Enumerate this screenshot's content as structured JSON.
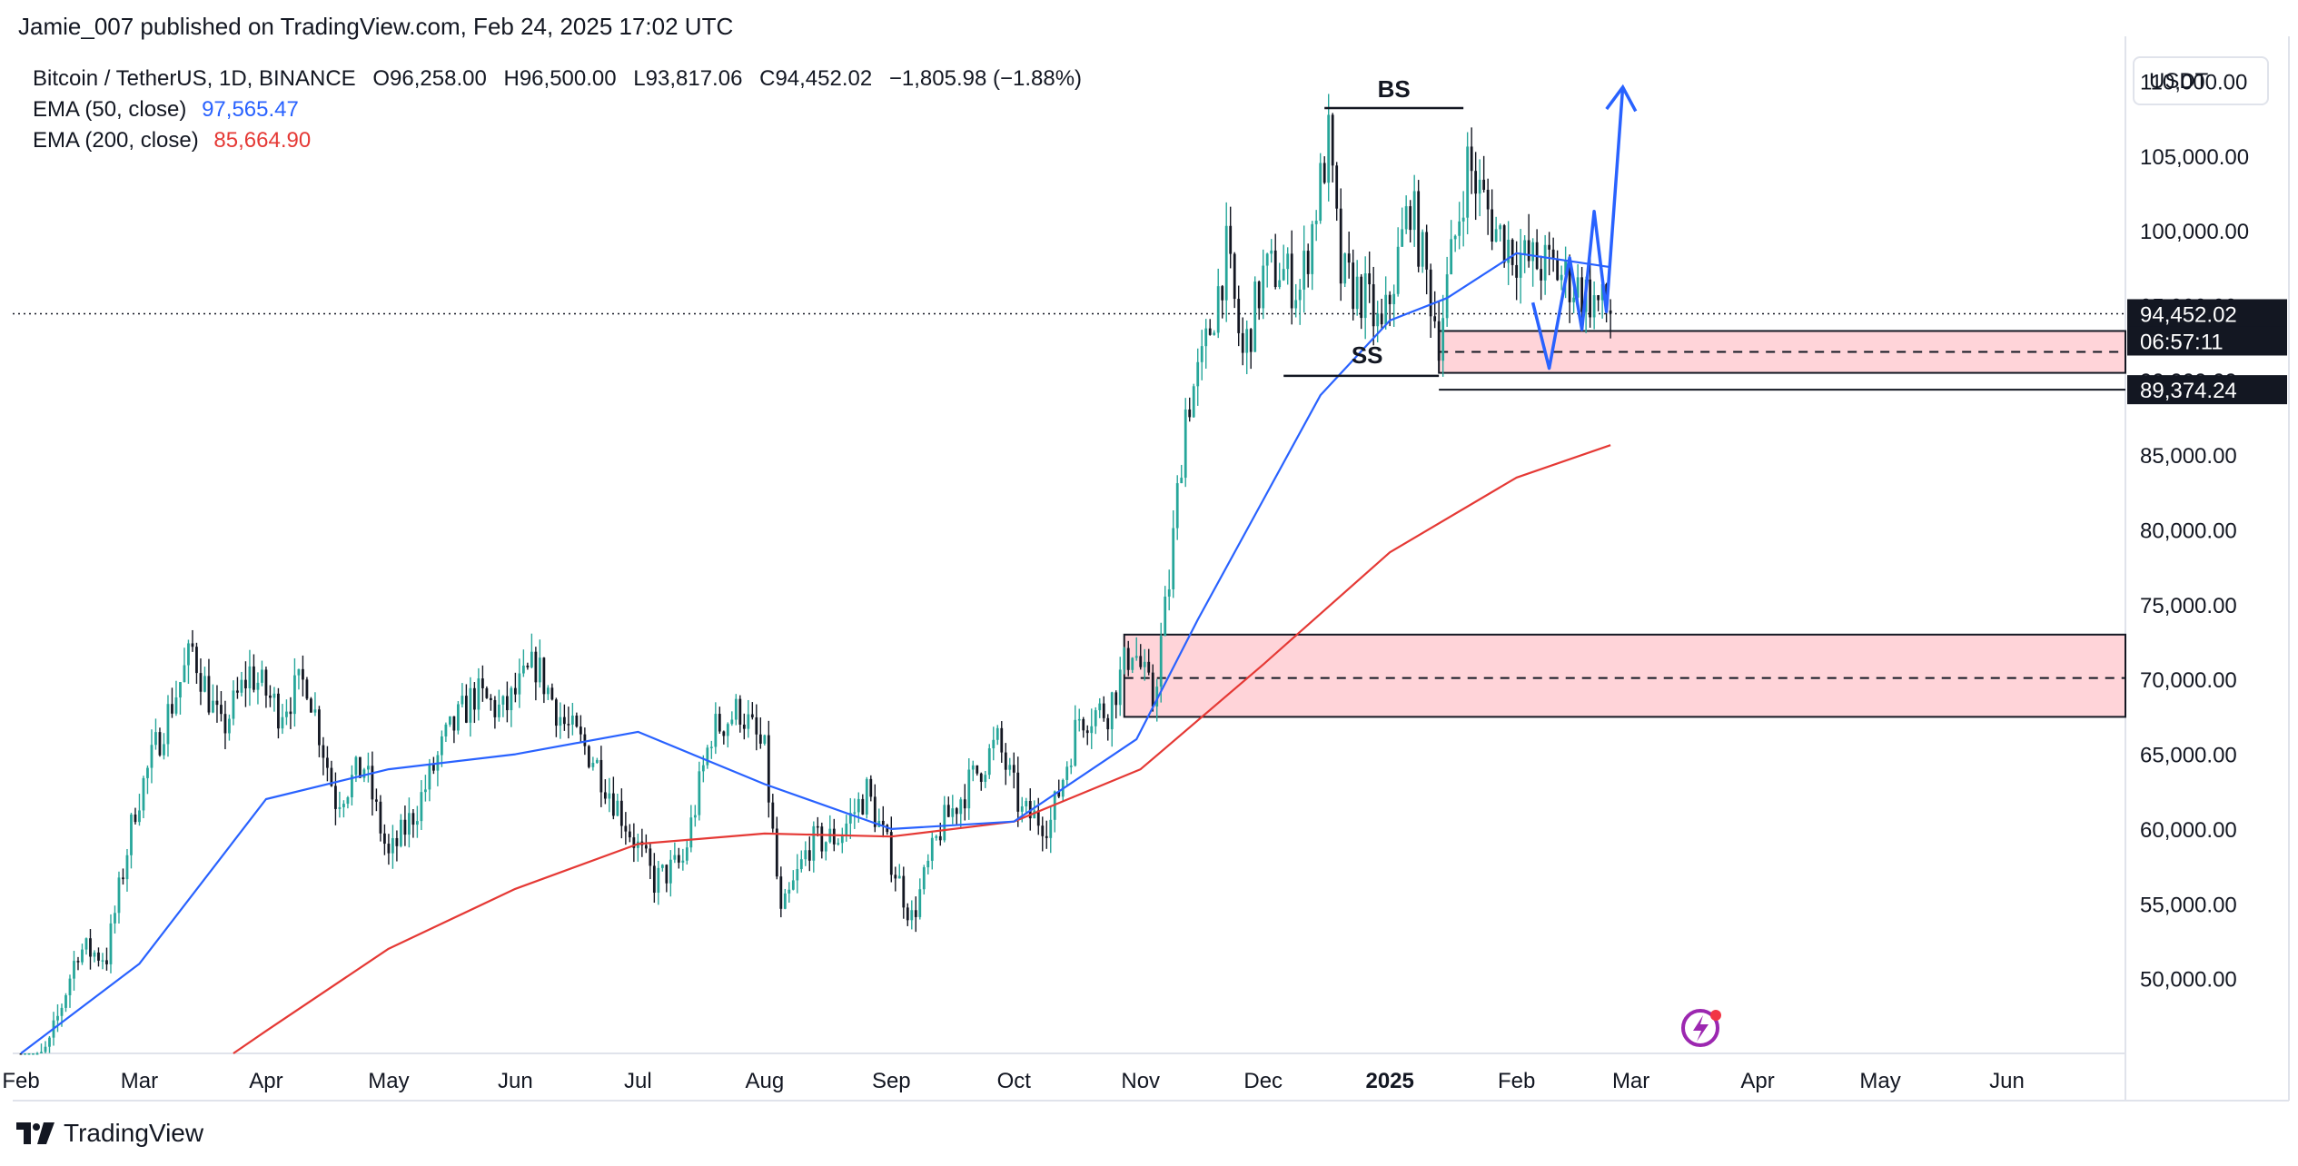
{
  "header": {
    "publish_line": "Jamie_007 published on TradingView.com, Feb 24, 2025 17:02 UTC"
  },
  "legend": {
    "symbol": "Bitcoin / TetherUS, 1D, BINANCE",
    "open_label": "O",
    "open": "96,258.00",
    "high_label": "H",
    "high": "96,500.00",
    "low_label": "L",
    "low": "93,817.06",
    "close_label": "C",
    "close": "94,452.02",
    "change": "−1,805.98 (−1.88%)",
    "ema50_label": "EMA (50, close)",
    "ema50_value": "97,565.47",
    "ema200_label": "EMA (200, close)",
    "ema200_value": "85,664.90"
  },
  "currency_select": "USDT",
  "brand": {
    "name": "TradingView",
    "logo_icon": "tradingview-logo-icon"
  },
  "colors": {
    "bull": "#26a69a",
    "bear": "#131722",
    "ema50": "#2962ff",
    "ema200": "#e53935",
    "zone_fill": "#ffcdd2",
    "projection": "#2962ff",
    "text": "#131722"
  },
  "price_labels": {
    "last_price": "94,452.02",
    "countdown": "06:57:11",
    "level": "89,374.24"
  },
  "annotations": {
    "buy_side": "BS",
    "sell_side": "SS"
  },
  "chart_data": {
    "type": "candlestick",
    "title": "Bitcoin / TetherUS, 1D, BINANCE",
    "ylim": [
      45000,
      113000
    ],
    "y_ticks": [
      50000,
      55000,
      60000,
      65000,
      70000,
      75000,
      80000,
      85000,
      90000,
      95000,
      100000,
      105000,
      110000
    ],
    "y_tick_labels": [
      "50,000.00",
      "55,000.00",
      "60,000.00",
      "65,000.00",
      "70,000.00",
      "75,000.00",
      "80,000.00",
      "85,000.00",
      "90,000.00",
      "95,000.00",
      "100,000.00",
      "105,000.00",
      "110,000.00"
    ],
    "x_range": [
      "2024-01-30",
      "2025-06-30"
    ],
    "x_ticks": [
      "2024-02-01",
      "2024-03-01",
      "2024-04-01",
      "2024-05-01",
      "2024-06-01",
      "2024-07-01",
      "2024-08-01",
      "2024-09-01",
      "2024-10-01",
      "2024-11-01",
      "2024-12-01",
      "2025-01-01",
      "2025-02-01",
      "2025-03-01",
      "2025-04-01",
      "2025-05-01",
      "2025-06-01"
    ],
    "x_tick_labels": [
      "Feb",
      "Mar",
      "Apr",
      "May",
      "Jun",
      "Jul",
      "Aug",
      "Sep",
      "Oct",
      "Nov",
      "Dec",
      "2025",
      "Feb",
      "Mar",
      "Apr",
      "May",
      "Jun"
    ],
    "price_path": [
      [
        "2024-02-01",
        42800
      ],
      [
        "2024-02-08",
        45500
      ],
      [
        "2024-02-15",
        52000
      ],
      [
        "2024-02-22",
        51500
      ],
      [
        "2024-02-29",
        61500
      ],
      [
        "2024-03-07",
        67000
      ],
      [
        "2024-03-14",
        72000
      ],
      [
        "2024-03-21",
        66500
      ],
      [
        "2024-03-28",
        70500
      ],
      [
        "2024-04-04",
        68000
      ],
      [
        "2024-04-11",
        70000
      ],
      [
        "2024-04-18",
        62000
      ],
      [
        "2024-04-25",
        64200
      ],
      [
        "2024-05-01",
        58000
      ],
      [
        "2024-05-08",
        61500
      ],
      [
        "2024-05-15",
        66000
      ],
      [
        "2024-05-22",
        69000
      ],
      [
        "2024-05-29",
        67800
      ],
      [
        "2024-06-06",
        71000
      ],
      [
        "2024-06-13",
        67000
      ],
      [
        "2024-06-20",
        64800
      ],
      [
        "2024-06-27",
        61000
      ],
      [
        "2024-07-05",
        56500
      ],
      [
        "2024-07-12",
        57800
      ],
      [
        "2024-07-19",
        66500
      ],
      [
        "2024-07-26",
        68000
      ],
      [
        "2024-08-01",
        65000
      ],
      [
        "2024-08-05",
        54000
      ],
      [
        "2024-08-12",
        59000
      ],
      [
        "2024-08-19",
        59500
      ],
      [
        "2024-08-26",
        62500
      ],
      [
        "2024-09-01",
        58000
      ],
      [
        "2024-09-06",
        54000
      ],
      [
        "2024-09-13",
        60000
      ],
      [
        "2024-09-20",
        63000
      ],
      [
        "2024-09-27",
        65800
      ],
      [
        "2024-10-03",
        61000
      ],
      [
        "2024-10-10",
        60500
      ],
      [
        "2024-10-17",
        67500
      ],
      [
        "2024-10-24",
        68000
      ],
      [
        "2024-10-30",
        72300
      ],
      [
        "2024-11-04",
        68500
      ],
      [
        "2024-11-08",
        76500
      ],
      [
        "2024-11-12",
        88000
      ],
      [
        "2024-11-16",
        91000
      ],
      [
        "2024-11-22",
        98500
      ],
      [
        "2024-11-26",
        91500
      ],
      [
        "2024-12-01",
        97000
      ],
      [
        "2024-12-05",
        97500
      ],
      [
        "2024-12-10",
        96000
      ],
      [
        "2024-12-17",
        106000
      ],
      [
        "2024-12-20",
        97000
      ],
      [
        "2024-12-26",
        95500
      ],
      [
        "2024-12-30",
        93000
      ],
      [
        "2025-01-06",
        102000
      ],
      [
        "2025-01-13",
        93000
      ],
      [
        "2025-01-20",
        104500
      ],
      [
        "2025-01-27",
        100000
      ],
      [
        "2025-02-03",
        98000
      ],
      [
        "2025-02-10",
        97500
      ],
      [
        "2025-02-17",
        96000
      ],
      [
        "2025-02-24",
        94452
      ]
    ],
    "ema50_path": [
      [
        "2024-02-01",
        40000
      ],
      [
        "2024-03-01",
        51000
      ],
      [
        "2024-04-01",
        62000
      ],
      [
        "2024-05-01",
        64000
      ],
      [
        "2024-06-01",
        65000
      ],
      [
        "2024-07-01",
        66500
      ],
      [
        "2024-08-01",
        63000
      ],
      [
        "2024-09-01",
        60000
      ],
      [
        "2024-10-01",
        60500
      ],
      [
        "2024-10-31",
        66000
      ],
      [
        "2024-11-15",
        74000
      ],
      [
        "2024-12-01",
        82000
      ],
      [
        "2024-12-15",
        89000
      ],
      [
        "2025-01-01",
        94000
      ],
      [
        "2025-01-15",
        95500
      ],
      [
        "2025-02-01",
        98500
      ],
      [
        "2025-02-24",
        97565
      ]
    ],
    "ema200_path": [
      [
        "2024-03-24",
        45000
      ],
      [
        "2024-04-01",
        46500
      ],
      [
        "2024-05-01",
        52000
      ],
      [
        "2024-06-01",
        56000
      ],
      [
        "2024-07-01",
        59000
      ],
      [
        "2024-08-01",
        59700
      ],
      [
        "2024-09-01",
        59500
      ],
      [
        "2024-10-01",
        60500
      ],
      [
        "2024-11-01",
        64000
      ],
      [
        "2024-12-01",
        71000
      ],
      [
        "2025-01-01",
        78500
      ],
      [
        "2025-02-01",
        83500
      ],
      [
        "2025-02-24",
        85665
      ]
    ],
    "demand_zones": [
      {
        "from": "2024-10-28",
        "to": "2025-06-30",
        "top": 73000,
        "bottom": 67500,
        "mid": 70100
      },
      {
        "from": "2025-01-13",
        "to": "2025-06-30",
        "top": 93300,
        "bottom": 90500,
        "mid": 91900
      }
    ],
    "buy_side_level": {
      "from": "2024-12-16",
      "to": "2025-01-19",
      "value": 108200
    },
    "sell_side_level": {
      "from": "2024-12-06",
      "to": "2025-01-13",
      "value": 90300
    },
    "level_line": {
      "from": "2025-01-13",
      "to": "2025-06-30",
      "value": 89374
    },
    "projection_path": [
      [
        "2025-02-05",
        95200
      ],
      [
        "2025-02-09",
        90800
      ],
      [
        "2025-02-14",
        98200
      ],
      [
        "2025-02-17",
        93400
      ],
      [
        "2025-02-20",
        101300
      ],
      [
        "2025-02-23",
        94600
      ],
      [
        "2025-02-27",
        109600
      ]
    ],
    "last_price": 94452.02
  }
}
